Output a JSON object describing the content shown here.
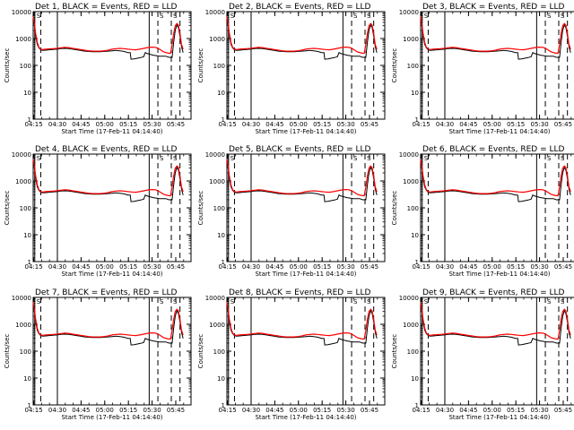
{
  "figure": {
    "xlabel": "Start Time (17-Feb-11 04:14:40)",
    "ylabel": "Counts/sec",
    "x_tick_labels": [
      "04:15",
      "04:30",
      "04:45",
      "05:00",
      "05:15",
      "05:30",
      "05:45"
    ],
    "y_tick_labels": [
      "1",
      "10",
      "100",
      "1000",
      "10000"
    ],
    "colors": {
      "events": "#000000",
      "lld": "#ff0000",
      "axes": "#000000"
    }
  },
  "chart_data": [
    {
      "type": "line",
      "title": "Det 1, BLACK = Events, RED = LLD",
      "corner_labels": [
        "S",
        "S",
        "S"
      ]
    },
    {
      "type": "line",
      "title": "Det 2, BLACK = Events, RED = LLD",
      "corner_labels": [
        "S",
        "S",
        "S"
      ]
    },
    {
      "type": "line",
      "title": "Det 3, BLACK = Events, RED = LLD",
      "corner_labels": [
        "S",
        "S",
        "S"
      ]
    },
    {
      "type": "line",
      "title": "Det 4, BLACK = Events, RED = LLD",
      "corner_labels": [
        "S",
        "S",
        "S"
      ]
    },
    {
      "type": "line",
      "title": "Det 5, BLACK = Events, RED = LLD",
      "corner_labels": [
        "S",
        "S",
        "S"
      ]
    },
    {
      "type": "line",
      "title": "Det 6, BLACK = Events, RED = LLD",
      "corner_labels": [
        "S",
        "S",
        "S"
      ]
    },
    {
      "type": "line",
      "title": "Det 7, BLACK = Events, RED = LLD",
      "corner_labels": [
        "S",
        "S",
        "S"
      ]
    },
    {
      "type": "line",
      "title": "Det 8, BLACK = Events, RED = LLD",
      "corner_labels": [
        "S",
        "S",
        "S"
      ]
    },
    {
      "type": "line",
      "title": "Det 9, BLACK = Events, RED = LLD",
      "corner_labels": [
        "S",
        "S",
        "S"
      ]
    }
  ],
  "shared_axes": {
    "x_label_time_minutes": [
      0.33,
      15.33,
      30.33,
      45.33,
      60.33,
      75.33,
      90.33
    ],
    "x_range_minutes": [
      0,
      100
    ],
    "y_range": [
      1,
      10000
    ],
    "y_scale": "log",
    "solid_markers_minutes": [
      1.0,
      15.33,
      73.5
    ],
    "dashed_markers_minutes": [
      4.8,
      79.0,
      87.5,
      93.0
    ]
  },
  "series": {
    "events_name": "Events",
    "lld_name": "LLD",
    "events": {
      "x": [
        0.0,
        0.8,
        1.6,
        2.6,
        3.6,
        4.8,
        6.0,
        8.0,
        10.0,
        12.5,
        15.0,
        17.5,
        20.0,
        22.5,
        25.0,
        27.5,
        30.0,
        32.5,
        35.0,
        37.5,
        40.0,
        42.5,
        45.0,
        47.5,
        50.0,
        52.5,
        55.0,
        57.5,
        60.0,
        61.5,
        62.0,
        64.0,
        66.0,
        68.0,
        70.0,
        71.0,
        72.0,
        74.0,
        76.0,
        78.0,
        80.0,
        82.0,
        84.0,
        86.0,
        88.0,
        89.0,
        90.0,
        91.0,
        92.0,
        93.0,
        94.0,
        95.0
      ],
      "y": [
        6000,
        3000,
        1200,
        600,
        450,
        380,
        360,
        370,
        380,
        390,
        400,
        420,
        430,
        420,
        400,
        380,
        360,
        340,
        330,
        320,
        320,
        320,
        330,
        340,
        350,
        360,
        350,
        330,
        300,
        300,
        170,
        175,
        185,
        195,
        210,
        300,
        280,
        260,
        240,
        230,
        220,
        220,
        220,
        200,
        200,
        700,
        2000,
        3200,
        2600,
        1200,
        500,
        300
      ]
    },
    "lld": {
      "x": [
        0.0,
        0.8,
        1.6,
        2.6,
        3.6,
        4.8,
        6.0,
        8.0,
        10.0,
        12.5,
        15.0,
        17.5,
        20.0,
        22.5,
        25.0,
        27.5,
        30.0,
        32.5,
        35.0,
        37.5,
        40.0,
        42.5,
        45.0,
        47.5,
        50.0,
        52.5,
        55.0,
        57.5,
        60.0,
        62.5,
        65.0,
        67.5,
        70.0,
        72.5,
        75.0,
        77.5,
        80.0,
        82.5,
        85.0,
        87.0,
        88.0,
        89.0,
        90.0,
        91.0,
        92.0,
        93.0,
        94.0,
        95.0
      ],
      "y": [
        6500,
        3500,
        1500,
        700,
        480,
        400,
        390,
        400,
        410,
        420,
        430,
        450,
        470,
        460,
        430,
        410,
        390,
        370,
        350,
        340,
        340,
        340,
        350,
        370,
        400,
        420,
        430,
        420,
        400,
        390,
        380,
        400,
        430,
        460,
        480,
        470,
        400,
        320,
        290,
        280,
        600,
        1500,
        3000,
        3600,
        3200,
        1500,
        600,
        400
      ]
    }
  }
}
